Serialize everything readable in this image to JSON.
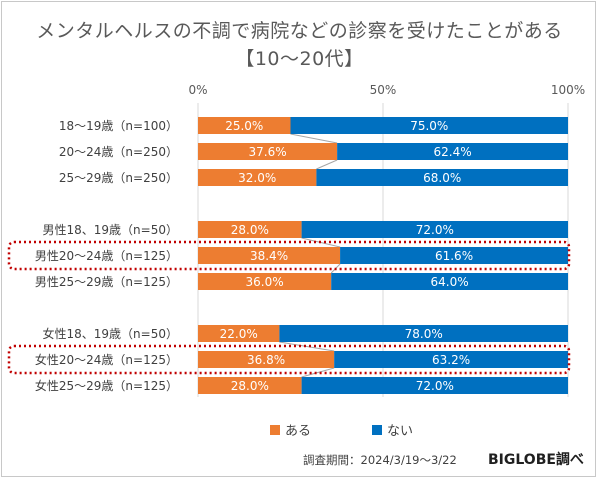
{
  "title": {
    "line1": "メンタルヘルスの不調で病院などの診察を受けたことがある",
    "line2": "【10～20代】"
  },
  "source": "調査期間：2024/3/19～3/22",
  "brand": "BIGLOBE調べ",
  "chart_data": {
    "type": "bar",
    "orientation": "horizontal",
    "stacked": "percent",
    "xlim": [
      0,
      100
    ],
    "x_ticks": [
      "0%",
      "50%",
      "100%"
    ],
    "grid": true,
    "legend_position": "bottom",
    "colors": {
      "ある": "#ed7d31",
      "ない": "#0070c0",
      "highlight": "#c00000"
    },
    "categories": [
      "18～19歳（n=100）",
      "20～24歳（n=250）",
      "25～29歳（n=250）",
      "男性18、19歳（n=50）",
      "男性20～24歳（n=125）",
      "男性25～29歳（n=125）",
      "女性18、19歳（n=50）",
      "女性20～24歳（n=125）",
      "女性25～29歳（n=125）"
    ],
    "series": [
      {
        "name": "ある",
        "values": [
          25.0,
          37.6,
          32.0,
          28.0,
          38.4,
          36.0,
          22.0,
          36.8,
          28.0
        ],
        "labels": [
          "25.0%",
          "37.6%",
          "32.0%",
          "28.0%",
          "38.4%",
          "36.0%",
          "22.0%",
          "36.8%",
          "28.0%"
        ]
      },
      {
        "name": "ない",
        "values": [
          75.0,
          62.4,
          68.0,
          72.0,
          61.6,
          64.0,
          78.0,
          63.2,
          72.0
        ],
        "labels": [
          "75.0%",
          "62.4%",
          "68.0%",
          "72.0%",
          "61.6%",
          "64.0%",
          "78.0%",
          "63.2%",
          "72.0%"
        ]
      }
    ],
    "highlighted_categories": [
      "男性20～24歳（n=125）",
      "女性20～24歳（n=125）"
    ]
  }
}
